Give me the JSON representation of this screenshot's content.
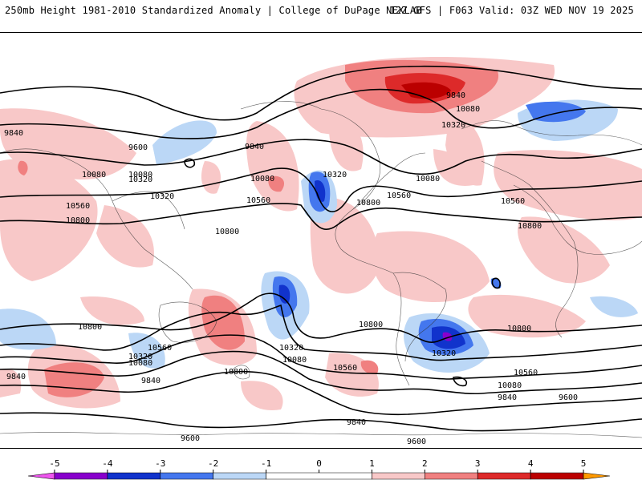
{
  "header": {
    "left": "250mb Height 1981-2010 Standardized Anomaly | College of DuPage NEXLAB",
    "right": "12Z GFS | F063 Valid: 03Z WED NOV 19 2025"
  },
  "colors": {
    "neg5": "#ee55ee",
    "neg4": "#8800cc",
    "neg3": "#1133cc",
    "neg2": "#4477ee",
    "neg1": "#bbd7f6",
    "zero": "#ffffff",
    "pos1": "#f8c8c8",
    "pos2": "#f08080",
    "pos3": "#dd2a2a",
    "pos4": "#bb0000",
    "pos5": "#ff9900"
  },
  "contour_labels": [
    "9840",
    "10080",
    "10320",
    "9840",
    "9600",
    "9840",
    "10080",
    "10320",
    "10560",
    "10800",
    "10080",
    "10320",
    "10560",
    "10800",
    "10080",
    "10560",
    "10800",
    "10800",
    "10560",
    "10800",
    "10560",
    "10320",
    "10080",
    "10800",
    "10320",
    "10080",
    "10560",
    "10320",
    "9840",
    "10080",
    "9840",
    "10560",
    "10800",
    "9840",
    "9600",
    "9600",
    "9600",
    "9840",
    "10080",
    "10320",
    "10800"
  ],
  "colorbar": {
    "ticks": [
      "-5",
      "-4",
      "-3",
      "-2",
      "-1",
      "0",
      "1",
      "2",
      "3",
      "4",
      "5"
    ],
    "range": [
      -5.5,
      5.5
    ]
  }
}
